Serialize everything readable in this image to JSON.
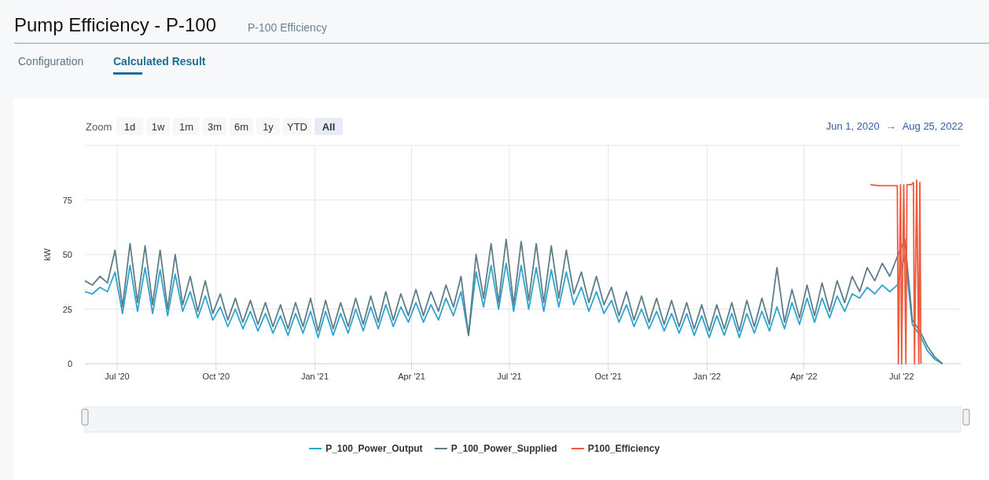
{
  "chart_data": {
    "type": "line",
    "title": "Pump Efficiency - P-100",
    "subtitle": "P-100 Efficiency",
    "ylabel": "kW",
    "annotations": [
      "Configuration",
      "Calculated Result",
      "Zoom",
      "1d",
      "1w",
      "1m",
      "3m",
      "6m",
      "1y",
      "YTD",
      "All",
      "Jun 1, 2020",
      "→",
      "Aug 25, 2022"
    ],
    "x": [
      "2020-06-01",
      "2020-06-08",
      "2020-06-15",
      "2020-06-22",
      "2020-06-29",
      "2020-07-06",
      "2020-07-13",
      "2020-07-20",
      "2020-07-27",
      "2020-08-03",
      "2020-08-10",
      "2020-08-17",
      "2020-08-24",
      "2020-08-31",
      "2020-09-07",
      "2020-09-14",
      "2020-09-21",
      "2020-09-28",
      "2020-10-05",
      "2020-10-12",
      "2020-10-19",
      "2020-10-26",
      "2020-11-02",
      "2020-11-09",
      "2020-11-16",
      "2020-11-23",
      "2020-11-30",
      "2020-12-07",
      "2020-12-14",
      "2020-12-21",
      "2020-12-28",
      "2021-01-04",
      "2021-01-11",
      "2021-01-18",
      "2021-01-25",
      "2021-02-01",
      "2021-02-08",
      "2021-02-15",
      "2021-02-22",
      "2021-03-01",
      "2021-03-08",
      "2021-03-15",
      "2021-03-22",
      "2021-03-29",
      "2021-04-05",
      "2021-04-12",
      "2021-04-19",
      "2021-04-26",
      "2021-05-03",
      "2021-05-10",
      "2021-05-17",
      "2021-05-24",
      "2021-05-31",
      "2021-06-07",
      "2021-06-14",
      "2021-06-21",
      "2021-06-28",
      "2021-07-05",
      "2021-07-12",
      "2021-07-19",
      "2021-07-26",
      "2021-08-02",
      "2021-08-09",
      "2021-08-16",
      "2021-08-23",
      "2021-08-30",
      "2021-09-06",
      "2021-09-13",
      "2021-09-20",
      "2021-09-27",
      "2021-10-04",
      "2021-10-11",
      "2021-10-18",
      "2021-10-25",
      "2021-11-01",
      "2021-11-08",
      "2021-11-15",
      "2021-11-22",
      "2021-11-29",
      "2021-12-06",
      "2021-12-13",
      "2021-12-20",
      "2021-12-27",
      "2022-01-03",
      "2022-01-10",
      "2022-01-17",
      "2022-01-24",
      "2022-01-31",
      "2022-02-07",
      "2022-02-14",
      "2022-02-21",
      "2022-02-28",
      "2022-03-07",
      "2022-03-14",
      "2022-03-21",
      "2022-03-28",
      "2022-04-04",
      "2022-04-11",
      "2022-04-18",
      "2022-04-25",
      "2022-05-02",
      "2022-05-09",
      "2022-05-16",
      "2022-05-23",
      "2022-05-30",
      "2022-06-06",
      "2022-06-13",
      "2022-06-20",
      "2022-06-27",
      "2022-07-04",
      "2022-07-11",
      "2022-07-18",
      "2022-07-25",
      "2022-08-01",
      "2022-08-08"
    ],
    "series": [
      {
        "name": "P_100_Power_Output",
        "color": "#2fa4cf",
        "values": [
          33,
          32,
          35,
          33,
          42,
          23,
          45,
          24,
          44,
          23,
          43,
          22,
          41,
          24,
          33,
          21,
          31,
          20,
          26,
          17,
          25,
          16,
          24,
          15,
          23,
          14,
          22,
          13,
          23,
          14,
          24,
          12,
          24,
          13,
          23,
          14,
          25,
          15,
          26,
          16,
          27,
          17,
          26,
          19,
          28,
          19,
          27,
          20,
          30,
          22,
          33,
          13,
          42,
          26,
          45,
          25,
          46,
          24,
          45,
          25,
          44,
          24,
          43,
          26,
          42,
          27,
          35,
          24,
          33,
          23,
          29,
          19,
          27,
          17,
          25,
          16,
          24,
          15,
          23,
          14,
          23,
          13,
          22,
          12,
          22,
          13,
          23,
          12,
          23,
          14,
          24,
          15,
          26,
          16,
          28,
          18,
          30,
          19,
          30,
          21,
          31,
          24,
          32,
          30,
          35,
          32,
          36,
          33,
          36,
          50,
          18,
          13,
          6,
          2,
          0
        ]
      },
      {
        "name": "P_100_Power_Supplied",
        "color": "#5f7d87",
        "values": [
          38,
          36,
          40,
          37,
          52,
          26,
          55,
          28,
          54,
          27,
          52,
          25,
          50,
          27,
          40,
          24,
          38,
          23,
          32,
          20,
          30,
          19,
          29,
          18,
          28,
          17,
          27,
          16,
          28,
          17,
          30,
          15,
          29,
          16,
          28,
          17,
          30,
          18,
          31,
          19,
          33,
          20,
          32,
          22,
          34,
          22,
          33,
          24,
          36,
          26,
          40,
          13,
          50,
          30,
          55,
          28,
          57,
          27,
          56,
          29,
          55,
          28,
          54,
          30,
          52,
          32,
          42,
          28,
          40,
          27,
          35,
          22,
          33,
          20,
          31,
          19,
          30,
          18,
          29,
          17,
          28,
          16,
          27,
          15,
          27,
          16,
          28,
          15,
          29,
          17,
          30,
          18,
          44,
          19,
          34,
          21,
          36,
          22,
          37,
          24,
          38,
          28,
          40,
          33,
          44,
          38,
          46,
          40,
          49,
          57,
          20,
          15,
          8,
          3,
          0
        ]
      },
      {
        "name": "P100_Efficiency",
        "color": "#ee5a3c",
        "x": [
          "2022-06-02",
          "2022-06-10",
          "2022-06-20",
          "2022-06-27",
          "2022-06-28",
          "2022-06-30",
          "2022-07-01",
          "2022-07-03",
          "2022-07-05",
          "2022-07-06",
          "2022-07-10",
          "2022-07-12",
          "2022-07-13",
          "2022-07-15",
          "2022-07-17",
          "2022-07-18",
          "2022-07-19"
        ],
        "values": [
          82,
          81.5,
          81.5,
          81.5,
          0,
          82,
          0,
          82,
          0,
          82,
          82,
          83,
          0,
          84,
          0,
          83,
          0
        ]
      }
    ],
    "xlim": [
      "2020-06-01",
      "2022-08-25"
    ],
    "xticks": [
      {
        "value": "2020-07-01",
        "label": "Jul '20"
      },
      {
        "value": "2020-10-01",
        "label": "Oct '20"
      },
      {
        "value": "2021-01-01",
        "label": "Jan '21"
      },
      {
        "value": "2021-04-01",
        "label": "Apr '21"
      },
      {
        "value": "2021-07-01",
        "label": "Jul '21"
      },
      {
        "value": "2021-10-01",
        "label": "Oct '21"
      },
      {
        "value": "2022-01-01",
        "label": "Jan '22"
      },
      {
        "value": "2022-04-01",
        "label": "Apr '22"
      },
      {
        "value": "2022-07-01",
        "label": "Jul '22"
      }
    ],
    "ylim": [
      0,
      100
    ],
    "yticks": [
      0,
      25,
      50,
      75,
      {
        "value": 100,
        "label": null
      }
    ],
    "grid": true,
    "legend": "bottom",
    "marker": "none",
    "line_style": "solid"
  }
}
